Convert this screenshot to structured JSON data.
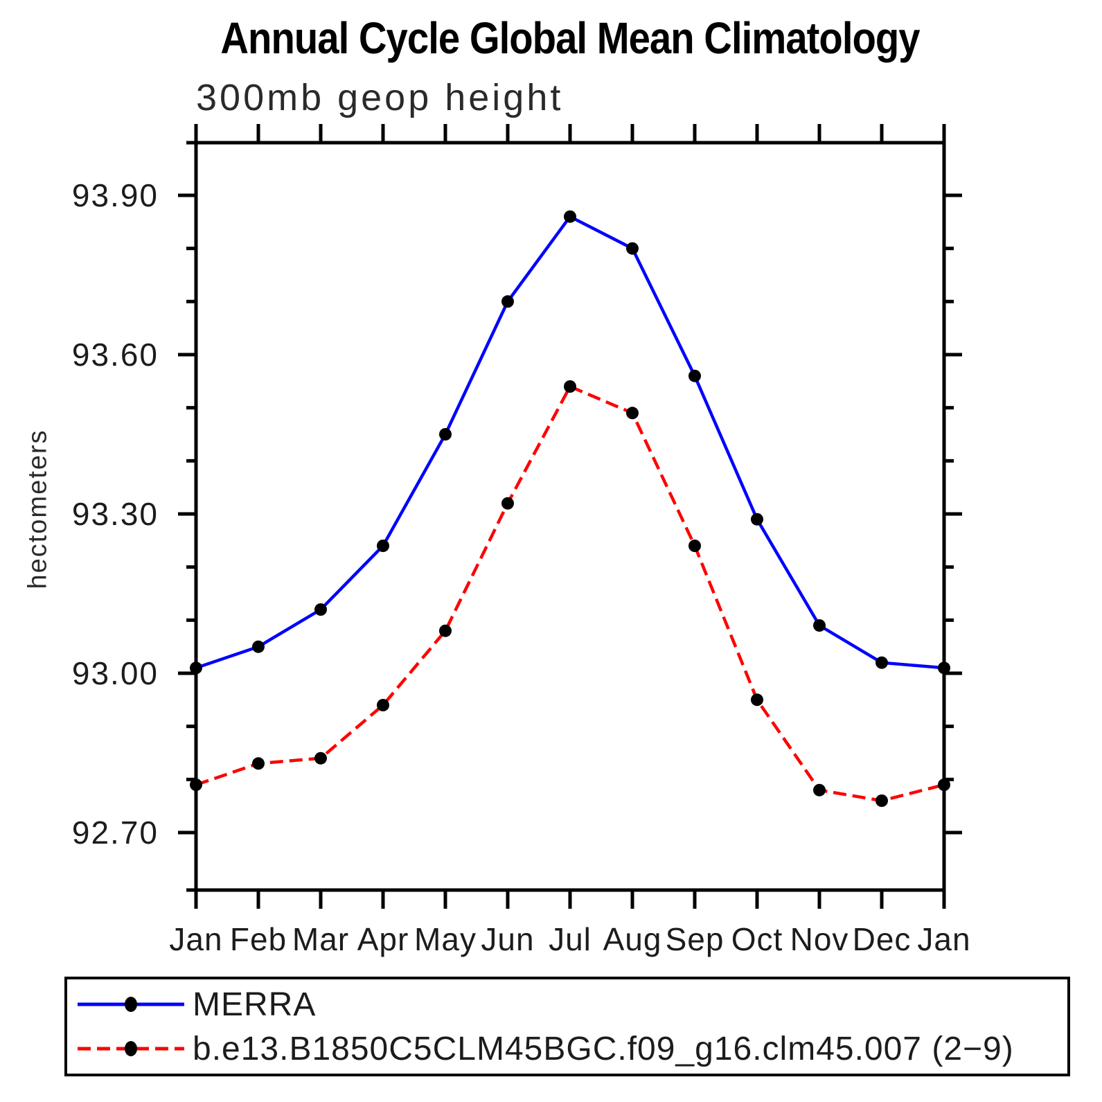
{
  "chart_data": {
    "type": "line",
    "title": "Annual Cycle Global Mean Climatology",
    "subtitle": "300mb geop height",
    "ylabel": "hectometers",
    "x_categories": [
      "Jan",
      "Feb",
      "Mar",
      "Apr",
      "May",
      "Jun",
      "Jul",
      "Aug",
      "Sep",
      "Oct",
      "Nov",
      "Dec",
      "Jan"
    ],
    "ylim": [
      92.59,
      94.0
    ],
    "yticks": [
      {
        "value": 92.7,
        "label": "92.70"
      },
      {
        "value": 93.0,
        "label": "93.00"
      },
      {
        "value": 93.3,
        "label": "93.30"
      },
      {
        "value": 93.6,
        "label": "93.60"
      },
      {
        "value": 93.9,
        "label": "93.90"
      }
    ],
    "yticks_minor": [
      92.8,
      92.9,
      93.1,
      93.2,
      93.4,
      93.5,
      93.7,
      93.8
    ],
    "grid": false,
    "axis_color": "#000000",
    "marker": {
      "shape": "circle",
      "color": "#000000"
    },
    "legend_position": "bottom-left-box",
    "series": [
      {
        "name": "MERRA",
        "color": "#0000ff",
        "line_style": "solid",
        "values": [
          93.01,
          93.05,
          93.12,
          93.24,
          93.45,
          93.7,
          93.86,
          93.8,
          93.56,
          93.29,
          93.09,
          93.02,
          93.01
        ]
      },
      {
        "name": "b.e13.B1850C5CLM45BGC.f09_g16.clm45.007 (2−9)",
        "color": "#ff0000",
        "line_style": "dashed",
        "values": [
          92.79,
          92.83,
          92.84,
          92.94,
          93.08,
          93.32,
          93.54,
          93.49,
          93.24,
          92.95,
          92.78,
          92.76,
          92.79
        ]
      }
    ]
  }
}
